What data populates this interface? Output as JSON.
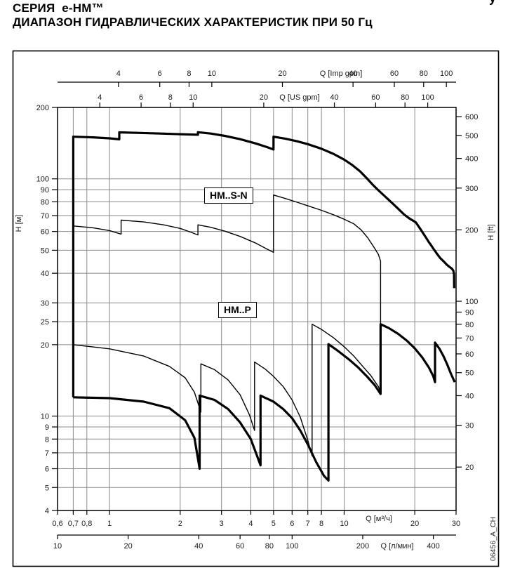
{
  "title": {
    "line1": "СЕРИЯ  e-HM™",
    "line2": "ДИАПАЗОН ГИДРАВЛИЧЕСКИХ ХАРАКТЕРИСТИК ПРИ 50 Гц",
    "crop_fragment": "у"
  },
  "watermark": "06456_A_CH",
  "colors": {
    "grid": "#8a8a8a",
    "axis": "#000000",
    "curve": "#000000",
    "text": "#1a1a1a"
  },
  "chart_data": {
    "type": "line",
    "scale": "log-log",
    "x_axis_m3h": {
      "label": "Q [м³/ч]",
      "range": [
        0.6,
        30
      ],
      "ticks": [
        0.6,
        0.7,
        0.8,
        1,
        2,
        3,
        4,
        5,
        6,
        7,
        8,
        10,
        20,
        30
      ],
      "tick_labels": [
        "0,6",
        "0,7",
        "0,8",
        "1",
        "2",
        "3",
        "4",
        "5",
        "6",
        "7",
        "8",
        "10",
        "20",
        "30"
      ]
    },
    "x_axis_lmin": {
      "label": "Q [л/мин]",
      "ticks": [
        10,
        20,
        40,
        60,
        80,
        100,
        200,
        400
      ],
      "tick_labels": [
        "10",
        "20",
        "40",
        "60",
        "80",
        "100",
        "200",
        "400"
      ]
    },
    "x_axis_usgpm": {
      "label": "Q [US gpm]",
      "ticks": [
        4,
        6,
        8,
        10,
        20,
        40,
        60,
        80,
        100
      ],
      "tick_labels": [
        "4",
        "6",
        "8",
        "10",
        "20",
        "40",
        "60",
        "80",
        "100"
      ]
    },
    "x_axis_impgpm": {
      "label": "Q [Imp gpm]",
      "ticks": [
        4,
        6,
        8,
        10,
        20,
        40,
        60,
        80,
        100
      ],
      "tick_labels": [
        "4",
        "6",
        "8",
        "10",
        "20",
        "40",
        "60",
        "80",
        "100"
      ]
    },
    "y_axis_m": {
      "label": "H [м]",
      "range": [
        4,
        200
      ],
      "ticks": [
        200,
        100,
        90,
        80,
        70,
        60,
        50,
        40,
        30,
        25,
        20,
        10,
        9,
        8,
        7,
        6,
        5,
        4
      ],
      "tick_labels": [
        "200",
        "100",
        "90",
        "80",
        "70",
        "60",
        "50",
        "40",
        "30",
        "25",
        "20",
        "10",
        "9",
        "8",
        "7",
        "6",
        "5",
        "4"
      ]
    },
    "y_axis_ft": {
      "label": "H [ft]",
      "ticks": [
        600,
        500,
        400,
        300,
        200,
        100,
        90,
        80,
        70,
        60,
        50,
        40,
        30,
        20
      ],
      "tick_labels": [
        "600",
        "500",
        "400",
        "300",
        "200",
        "100",
        "90",
        "80",
        "70",
        "60",
        "50",
        "40",
        "30",
        "20"
      ]
    },
    "gridlines_x_m3h": [
      0.7,
      0.8,
      1,
      2,
      3,
      4,
      5,
      6,
      7,
      8,
      10,
      20
    ],
    "gridlines_y_m": [
      100,
      90,
      80,
      70,
      60,
      50,
      40,
      30,
      25,
      20,
      10,
      9,
      8,
      7,
      6,
      5
    ],
    "series": [
      {
        "name": "HM..S-N envelope upper (thick)",
        "weight": "thick",
        "points": [
          [
            0.7,
            12.0
          ],
          [
            0.7,
            150.5
          ],
          [
            0.85,
            149.6
          ],
          [
            1.0,
            148.2
          ],
          [
            1.1,
            146.8
          ],
          [
            1.1,
            157.0
          ],
          [
            1.35,
            156.2
          ],
          [
            1.65,
            155.2
          ],
          [
            2.0,
            154.3
          ],
          [
            2.38,
            153.4
          ],
          [
            2.38,
            157.2
          ],
          [
            2.7,
            155.2
          ],
          [
            3.1,
            151.8
          ],
          [
            3.6,
            147.0
          ],
          [
            4.2,
            141.0
          ],
          [
            4.7,
            136.0
          ],
          [
            5.0,
            133.0
          ],
          [
            5.0,
            150.5
          ],
          [
            5.6,
            147.8
          ],
          [
            6.3,
            144.0
          ],
          [
            7.0,
            140.0
          ],
          [
            8.0,
            134.0
          ],
          [
            9.0,
            127.5
          ],
          [
            10.0,
            120.5
          ],
          [
            10.8,
            114.5
          ],
          [
            11.7,
            107.5
          ],
          [
            12.5,
            100.5
          ],
          [
            13.3,
            94.0
          ],
          [
            14.0,
            89.5
          ],
          [
            14.8,
            85.0
          ],
          [
            15.5,
            81.5
          ],
          [
            16.1,
            78.7
          ],
          [
            17.0,
            74.8
          ],
          [
            18.0,
            70.8
          ],
          [
            19.0,
            68.0
          ],
          [
            20.2,
            65.6
          ],
          [
            21.0,
            62.0
          ],
          [
            22.0,
            57.8
          ],
          [
            23.0,
            54.0
          ],
          [
            23.2,
            53.4
          ],
          [
            24.0,
            50.8
          ],
          [
            25.0,
            48.0
          ],
          [
            25.7,
            46.3
          ],
          [
            26.5,
            45.0
          ],
          [
            27.3,
            43.6
          ],
          [
            28.0,
            42.7
          ],
          [
            28.8,
            41.8
          ],
          [
            29.2,
            41.0
          ],
          [
            29.4,
            39.5
          ],
          [
            29.45,
            34.6
          ]
        ]
      },
      {
        "name": "HM..S-N inner curve (thin)",
        "weight": "thin",
        "points": [
          [
            0.7,
            63.3
          ],
          [
            0.85,
            62.2
          ],
          [
            1.0,
            60.5
          ],
          [
            1.12,
            58.5
          ],
          [
            1.12,
            67.0
          ],
          [
            1.4,
            65.8
          ],
          [
            1.7,
            64.0
          ],
          [
            2.0,
            61.8
          ],
          [
            2.25,
            59.3
          ],
          [
            2.38,
            58.0
          ],
          [
            2.38,
            64.0
          ],
          [
            2.7,
            62.5
          ],
          [
            3.1,
            60.2
          ],
          [
            3.6,
            57.2
          ],
          [
            4.2,
            53.6
          ],
          [
            4.7,
            50.5
          ],
          [
            5.0,
            49.0
          ],
          [
            5.0,
            85.5
          ],
          [
            5.6,
            82.7
          ],
          [
            6.3,
            79.7
          ],
          [
            7.0,
            77.0
          ],
          [
            8.0,
            73.7
          ],
          [
            9.0,
            70.6
          ],
          [
            10.0,
            67.6
          ],
          [
            11.0,
            64.6
          ],
          [
            11.8,
            61.0
          ],
          [
            12.6,
            56.5
          ],
          [
            13.4,
            51.5
          ],
          [
            14.0,
            48.0
          ],
          [
            14.3,
            45.0
          ],
          [
            14.3,
            24.4
          ]
        ]
      },
      {
        "name": "HM..P inner curve (thin)",
        "weight": "thin",
        "points": [
          [
            0.7,
            20.0
          ],
          [
            1.0,
            19.2
          ],
          [
            1.4,
            17.9
          ],
          [
            1.8,
            16.2
          ],
          [
            2.1,
            14.5
          ],
          [
            2.3,
            12.6
          ],
          [
            2.45,
            10.4
          ],
          [
            2.45,
            16.6
          ],
          [
            2.8,
            15.7
          ],
          [
            3.2,
            14.2
          ],
          [
            3.6,
            12.3
          ],
          [
            3.95,
            10.1
          ],
          [
            4.15,
            8.7
          ],
          [
            4.15,
            16.9
          ],
          [
            4.6,
            15.8
          ],
          [
            5.0,
            14.7
          ],
          [
            5.5,
            13.3
          ],
          [
            6.0,
            11.7
          ],
          [
            6.5,
            9.9
          ],
          [
            7.0,
            7.9
          ],
          [
            7.3,
            6.8
          ],
          [
            7.3,
            24.4
          ],
          [
            8.0,
            23.2
          ],
          [
            9.0,
            21.4
          ],
          [
            10.0,
            19.6
          ],
          [
            11.0,
            17.9
          ],
          [
            12.0,
            16.2
          ],
          [
            13.0,
            14.8
          ],
          [
            14.0,
            13.3
          ],
          [
            14.3,
            12.6
          ]
        ]
      },
      {
        "name": "HM..P envelope lower (thick)",
        "weight": "thick",
        "points": [
          [
            0.7,
            12.0
          ],
          [
            1.0,
            11.9
          ],
          [
            1.4,
            11.5
          ],
          [
            1.8,
            10.8
          ],
          [
            2.1,
            9.6
          ],
          [
            2.3,
            8.1
          ],
          [
            2.42,
            6.0
          ],
          [
            2.42,
            12.2
          ],
          [
            2.8,
            11.7
          ],
          [
            3.2,
            10.7
          ],
          [
            3.6,
            9.4
          ],
          [
            4.0,
            8.0
          ],
          [
            4.25,
            6.8
          ],
          [
            4.4,
            6.2
          ],
          [
            4.4,
            12.2
          ],
          [
            5.0,
            11.5
          ],
          [
            5.5,
            10.7
          ],
          [
            6.0,
            9.8
          ],
          [
            6.5,
            8.7
          ],
          [
            7.0,
            7.6
          ],
          [
            7.6,
            6.4
          ],
          [
            8.2,
            5.6
          ],
          [
            8.57,
            5.35
          ],
          [
            8.57,
            20.1
          ],
          [
            9.5,
            18.7
          ],
          [
            10.5,
            17.3
          ],
          [
            11.5,
            16.0
          ],
          [
            12.5,
            14.7
          ],
          [
            13.5,
            13.5
          ],
          [
            14.3,
            12.4
          ],
          [
            14.3,
            24.4
          ],
          [
            15.5,
            23.5
          ],
          [
            17.0,
            22.2
          ],
          [
            18.5,
            20.8
          ],
          [
            20.0,
            19.3
          ],
          [
            21.5,
            17.7
          ],
          [
            23.0,
            16.0
          ],
          [
            24.0,
            14.7
          ],
          [
            24.4,
            13.9
          ],
          [
            24.4,
            20.4
          ],
          [
            25.5,
            19.2
          ],
          [
            26.5,
            17.9
          ],
          [
            27.5,
            16.5
          ],
          [
            28.5,
            15.1
          ],
          [
            29.6,
            13.9
          ]
        ]
      }
    ],
    "annotations": [
      {
        "text": "HM..S-N"
      },
      {
        "text": "HM..P"
      }
    ]
  }
}
